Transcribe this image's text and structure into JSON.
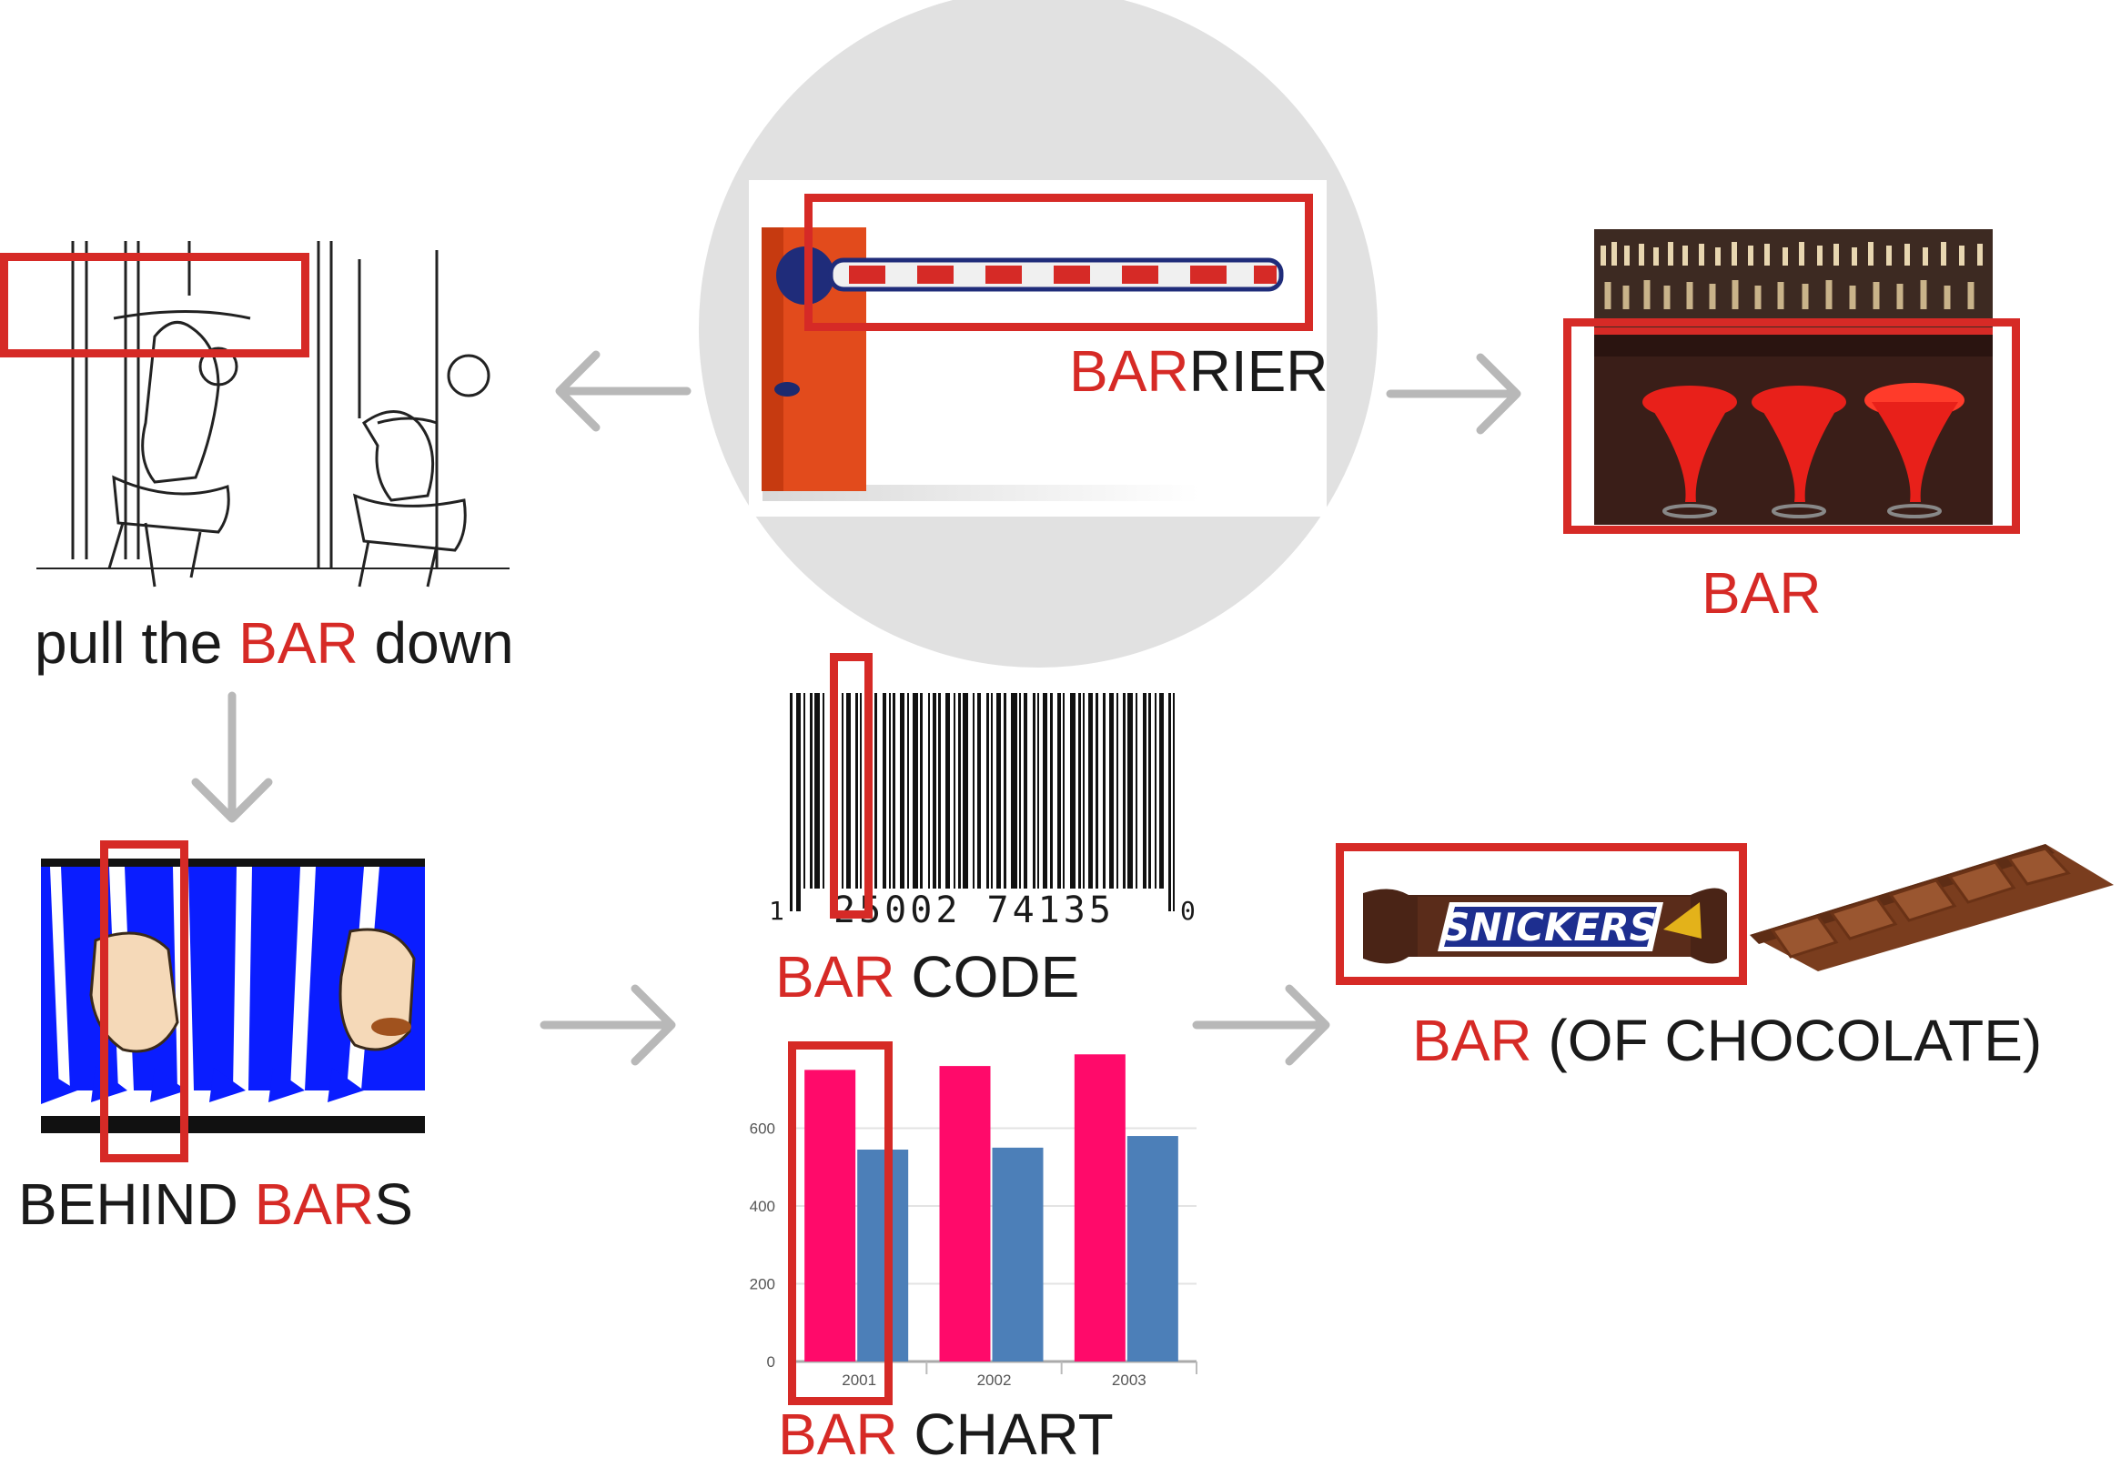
{
  "colors": {
    "accent_red": "#d62a26",
    "arrow_gray": "#b8b8b8",
    "circle_gray": "#e1e1e1",
    "barrier_orange": "#e24b1c",
    "jail_blue": "#0a1dff",
    "chart_pink": "#ff0a6a",
    "chart_blue": "#4c7fb8"
  },
  "labels": {
    "barrier": {
      "red": "BAR",
      "black": "RIER"
    },
    "bar": {
      "red": "BAR"
    },
    "pull": {
      "pre": "pull the ",
      "red": "BAR",
      "post": " down"
    },
    "behind": {
      "pre": "BEHIND ",
      "red": "BAR",
      "post": "S"
    },
    "barcode": {
      "red": "BAR",
      "black": " CODE"
    },
    "barchart": {
      "red": "BAR",
      "black": " CHART"
    },
    "chocolate": {
      "red": "BAR",
      "black": " (OF CHOCOLATE)"
    }
  },
  "barcode": {
    "digits_left": "1",
    "digits_main": "25002 74135",
    "digits_right": "0"
  },
  "snickers": {
    "brand": "SNICKERS"
  },
  "icons": [
    "arrow-left-icon",
    "arrow-right-icon",
    "arrow-down-icon"
  ],
  "chart_data": {
    "type": "bar",
    "categories": [
      "2001",
      "2002",
      "2003"
    ],
    "series": [
      {
        "values": [
          750,
          760,
          790
        ]
      },
      {
        "values": [
          545,
          550,
          580
        ]
      }
    ],
    "yticks": [
      "0",
      "200",
      "400",
      "600"
    ],
    "ylim": [
      0,
      800
    ],
    "grid": true
  }
}
